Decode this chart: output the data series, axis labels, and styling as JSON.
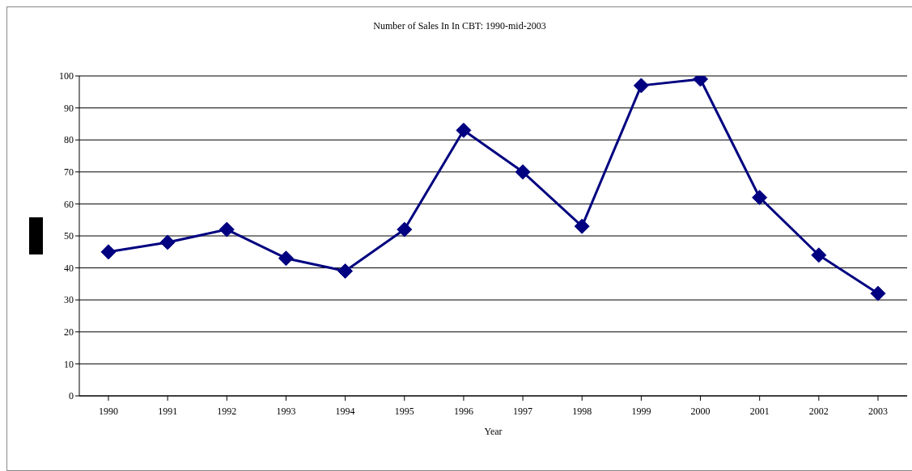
{
  "chart_data": {
    "type": "line",
    "title": "Number of Sales In In CBT: 1990-mid-2003",
    "xlabel": "Year",
    "categories": [
      "1990",
      "1991",
      "1992",
      "1993",
      "1994",
      "1995",
      "1996",
      "1997",
      "1998",
      "1999",
      "2000",
      "2001",
      "2002",
      "2003"
    ],
    "series": [
      {
        "color": "#000080",
        "values": [
          45,
          48,
          52,
          43,
          39,
          52,
          83,
          70,
          53,
          97,
          99,
          62,
          44,
          32
        ]
      }
    ],
    "ylim": [
      0,
      100
    ],
    "yticks": [
      0,
      10,
      20,
      30,
      40,
      50,
      60,
      70,
      80,
      90,
      100
    ],
    "grid": "y",
    "marker": "diamond",
    "line_style": "solid"
  }
}
